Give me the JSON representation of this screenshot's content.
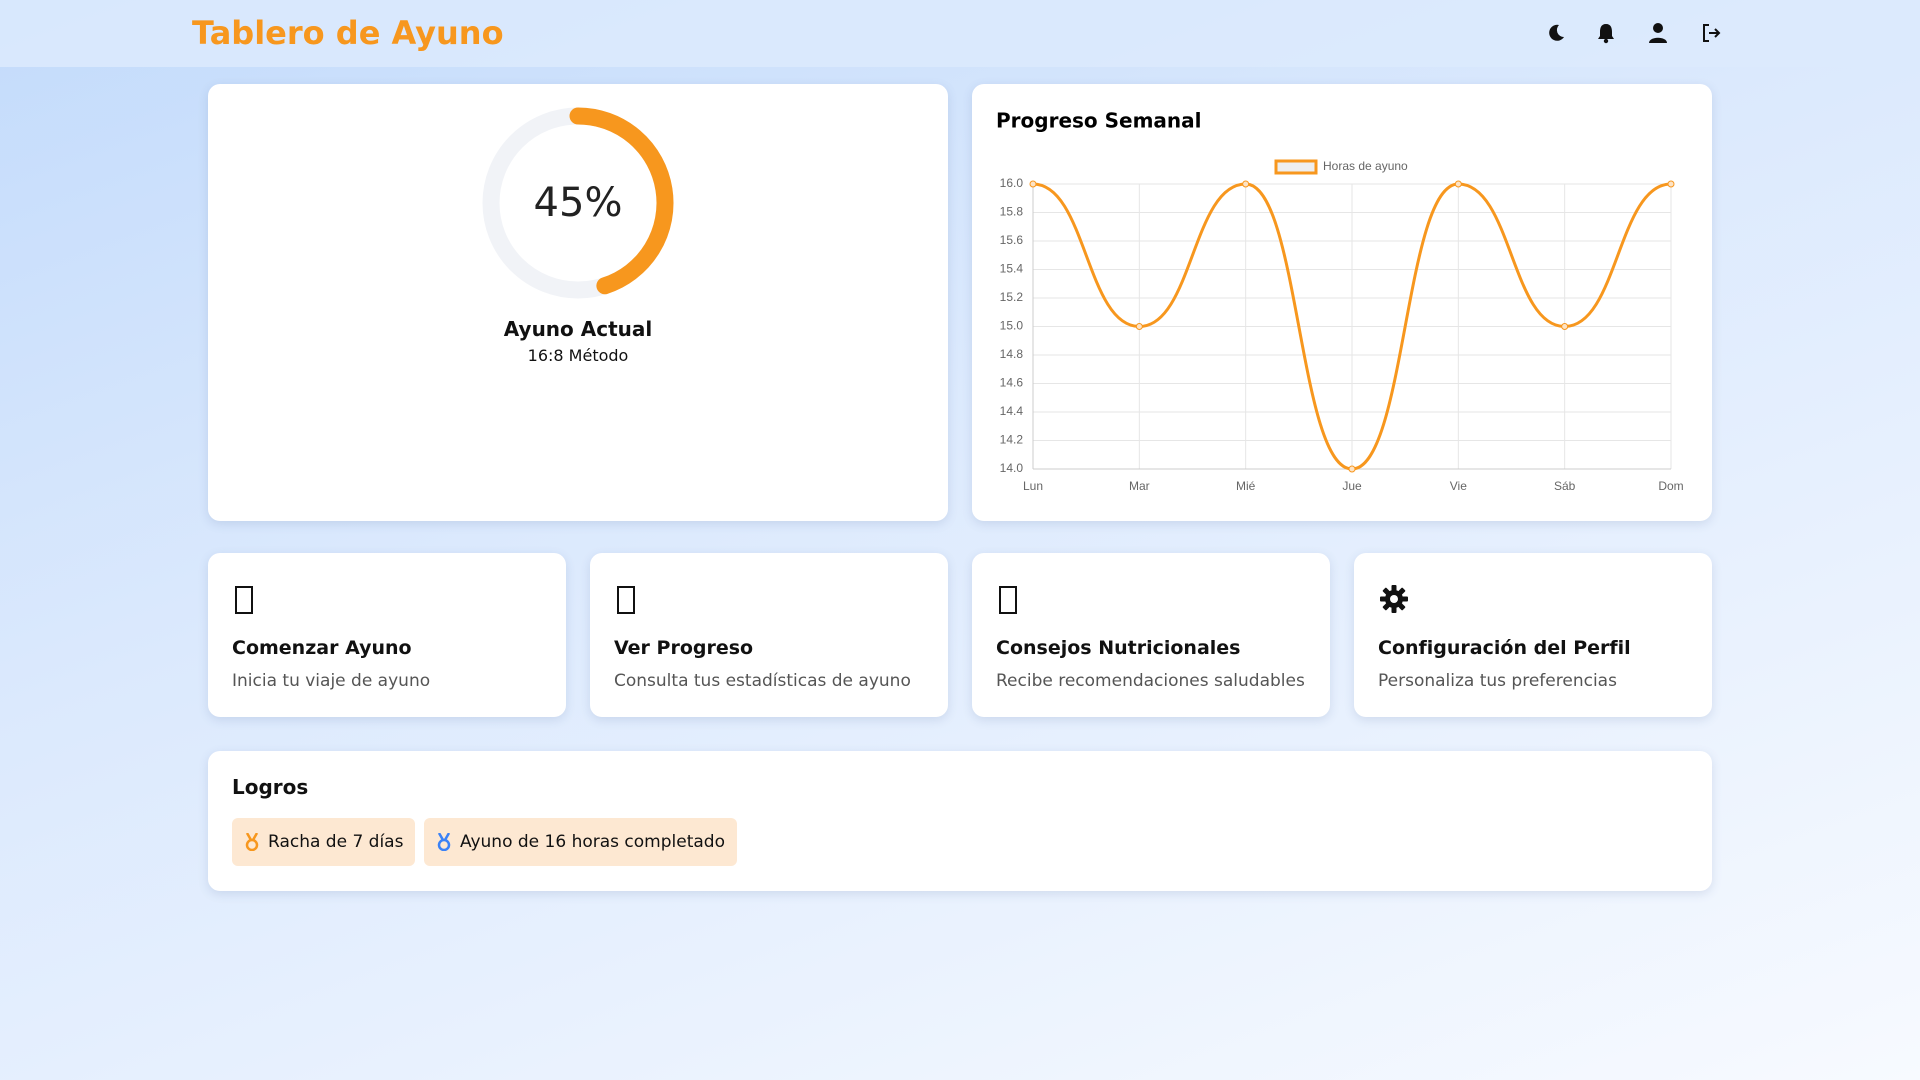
{
  "header": {
    "title": "Tablero de Ayuno"
  },
  "current_fast": {
    "progress": {
      "value": 45,
      "label": "45%"
    },
    "title": "Ayuno Actual",
    "method": "16:8 Método"
  },
  "chart_data": {
    "type": "line",
    "title": "Progreso Semanal",
    "categories": [
      "Lun",
      "Mar",
      "Mié",
      "Jue",
      "Vie",
      "Sáb",
      "Dom"
    ],
    "series": [
      {
        "name": "Horas de ayuno",
        "color": "#f7971e",
        "values": [
          16,
          15,
          16,
          14,
          16,
          15,
          16
        ]
      }
    ],
    "ylim": [
      14,
      16
    ],
    "yticks": [
      {
        "value": 14,
        "label": "14.0"
      },
      {
        "value": 14.2,
        "label": "14.2"
      },
      {
        "value": 14.4,
        "label": "14.4"
      },
      {
        "value": 14.6,
        "label": "14.6"
      },
      {
        "value": 14.8,
        "label": "14.8"
      },
      {
        "value": 15,
        "label": "15.0"
      },
      {
        "value": 15.2,
        "label": "15.2"
      },
      {
        "value": 15.4,
        "label": "15.4"
      },
      {
        "value": 15.6,
        "label": "15.6"
      },
      {
        "value": 15.8,
        "label": "15.8"
      },
      {
        "value": 16,
        "label": "16.0"
      }
    ],
    "grid": true,
    "legend": "top"
  },
  "features": [
    {
      "title": "Comenzar Ayuno",
      "description": "Inicia tu viaje de ayuno"
    },
    {
      "title": "Ver Progreso",
      "description": "Consulta tus estadísticas de ayuno"
    },
    {
      "title": "Consejos Nutricionales",
      "description": "Recibe recomendaciones saludables"
    },
    {
      "title": "Configuración del Perfil",
      "description": "Personaliza tus preferencias"
    }
  ],
  "achievements": {
    "title": "Logros",
    "items": [
      "Racha de 7 días",
      "Ayuno de 16 horas completado"
    ]
  }
}
